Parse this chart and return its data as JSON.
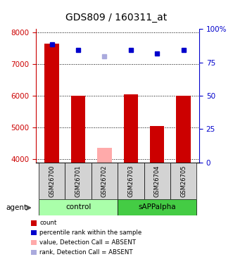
{
  "title": "GDS809 / 160311_at",
  "samples": [
    "GSM26700",
    "GSM26701",
    "GSM26702",
    "GSM26703",
    "GSM26704",
    "GSM26705"
  ],
  "bar_values": [
    7650,
    6000,
    4350,
    6050,
    5050,
    6000
  ],
  "bar_colors": [
    "#cc0000",
    "#cc0000",
    "#ffaaaa",
    "#cc0000",
    "#cc0000",
    "#cc0000"
  ],
  "dot_values": [
    7620,
    7430,
    7250,
    7430,
    7330,
    7450
  ],
  "dot_colors": [
    "#0000cc",
    "#0000cc",
    "#aaaadd",
    "#0000cc",
    "#0000cc",
    "#0000cc"
  ],
  "ylim_left": [
    3900,
    8100
  ],
  "yticks_left": [
    4000,
    5000,
    6000,
    7000,
    8000
  ],
  "yticks_right": [
    0,
    25,
    50,
    75,
    100
  ],
  "ytick_labels_right": [
    "0",
    "25",
    "50",
    "75",
    "100%"
  ],
  "legend_items": [
    {
      "label": "count",
      "color": "#cc0000"
    },
    {
      "label": "percentile rank within the sample",
      "color": "#0000cc"
    },
    {
      "label": "value, Detection Call = ABSENT",
      "color": "#ffaaaa"
    },
    {
      "label": "rank, Detection Call = ABSENT",
      "color": "#aaaadd"
    }
  ],
  "bar_bottom": 3900,
  "bar_width": 0.55,
  "control_color": "#aaffaa",
  "sapp_color": "#44cc44",
  "sample_box_color": "#d3d3d3"
}
